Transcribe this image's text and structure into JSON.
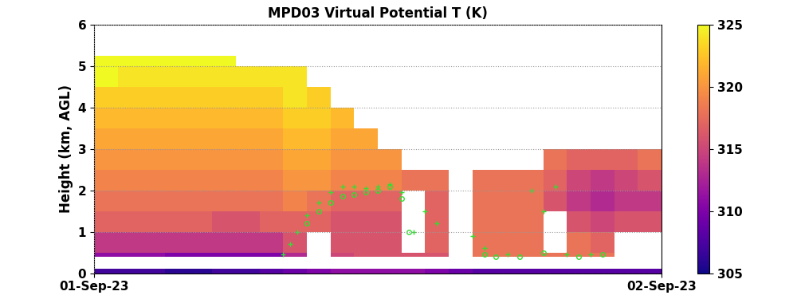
{
  "chart_data": {
    "type": "heatmap",
    "title": "MPD03 Virtual Potential T (K)",
    "y_label": "Height (km, AGL)",
    "xlim": [
      0,
      24
    ],
    "xticks": [
      {
        "value": 0,
        "label": "01-Sep-23"
      },
      {
        "value": 24,
        "label": "02-Sep-23"
      }
    ],
    "ylim": [
      0,
      6
    ],
    "yticks": [
      0,
      1,
      2,
      3,
      4,
      5,
      6
    ],
    "grid": true,
    "x": [
      0,
      1,
      2,
      3,
      4,
      5,
      6,
      7,
      8,
      9,
      10,
      11,
      12,
      13,
      14,
      15,
      16,
      17,
      18,
      19,
      20,
      21,
      22,
      23,
      24
    ],
    "y": [
      0,
      0.1,
      0.4,
      0.5,
      1.0,
      1.5,
      2.0,
      2.5,
      3.0,
      3.5,
      4.0,
      4.5,
      5.0,
      5.25
    ],
    "values": [
      [
        307,
        307,
        307,
        306,
        306,
        307,
        307,
        308,
        309,
        310,
        311,
        311,
        311,
        311,
        310,
        309,
        308,
        308,
        308,
        308,
        308,
        308,
        308,
        308
      ],
      [
        null,
        null,
        null,
        null,
        null,
        null,
        null,
        null,
        null,
        null,
        null,
        null,
        null,
        null,
        null,
        null,
        null,
        null,
        null,
        null,
        null,
        null,
        null,
        null
      ],
      [
        311,
        311,
        311,
        310,
        310,
        310,
        310,
        310,
        313,
        null,
        315,
        316,
        316,
        316,
        316,
        null,
        318,
        318,
        318,
        318,
        318,
        318,
        null,
        null
      ],
      [
        314,
        314,
        314,
        314,
        314,
        314,
        314,
        314,
        316,
        null,
        316,
        316,
        316,
        null,
        317,
        null,
        318,
        318,
        318,
        null,
        318,
        317,
        null,
        null
      ],
      [
        317,
        317,
        317,
        317,
        317,
        316,
        316,
        317,
        317,
        317,
        316,
        316,
        316,
        null,
        317,
        null,
        318,
        318,
        318,
        null,
        316,
        315,
        316,
        316
      ],
      [
        318,
        318,
        318,
        318,
        318,
        318,
        318,
        318,
        319,
        318,
        317,
        317,
        317,
        null,
        317,
        null,
        318,
        318,
        318,
        316,
        314,
        313,
        314,
        314
      ],
      [
        319,
        319,
        319,
        319,
        319,
        319,
        319,
        319,
        320,
        320,
        319,
        319,
        319,
        318,
        318,
        null,
        318,
        318,
        318,
        317,
        315,
        314,
        315,
        316
      ],
      [
        320,
        320,
        320,
        320,
        320,
        320,
        320,
        320,
        321,
        321,
        320,
        320,
        320,
        null,
        null,
        null,
        null,
        null,
        null,
        318,
        317,
        317,
        317,
        318
      ],
      [
        321,
        321,
        321,
        321,
        321,
        321,
        321,
        321,
        322,
        322,
        321,
        321,
        null,
        null,
        null,
        null,
        null,
        null,
        null,
        null,
        null,
        null,
        null,
        null
      ],
      [
        322,
        322,
        322,
        322,
        322,
        322,
        322,
        322,
        323,
        323,
        322,
        null,
        null,
        null,
        null,
        null,
        null,
        null,
        null,
        null,
        null,
        null,
        null,
        null
      ],
      [
        323,
        323,
        323,
        323,
        323,
        323,
        323,
        323,
        324,
        323,
        null,
        null,
        null,
        null,
        null,
        null,
        null,
        null,
        null,
        null,
        null,
        null,
        null,
        null
      ],
      [
        325,
        324,
        324,
        324,
        324,
        324,
        324,
        324,
        324,
        null,
        null,
        null,
        null,
        null,
        null,
        null,
        null,
        null,
        null,
        null,
        null,
        null,
        null,
        null
      ],
      [
        325,
        325,
        325,
        325,
        325,
        325,
        null,
        null,
        null,
        null,
        null,
        null,
        null,
        null,
        null,
        null,
        null,
        null,
        null,
        null,
        null,
        null,
        null,
        null
      ]
    ],
    "colorbar": {
      "range": [
        305,
        325
      ],
      "ticks": [
        305,
        310,
        315,
        320,
        325
      ]
    },
    "markers": [
      {
        "marker": "+",
        "color": "#33dd33",
        "x": [
          8.0,
          8.3,
          8.6,
          9.0,
          9.5,
          10.0,
          10.5,
          11.0,
          11.5,
          12.0,
          12.5,
          13.0,
          13.5,
          14.0,
          14.5,
          16.0,
          16.5,
          17.5,
          18.5,
          19.0,
          19.5,
          20.0,
          21.0
        ],
        "y": [
          0.45,
          0.7,
          1.0,
          1.4,
          1.7,
          1.95,
          2.1,
          2.1,
          2.05,
          2.1,
          2.15,
          1.95,
          1.0,
          1.5,
          1.2,
          0.9,
          0.6,
          0.45,
          2.0,
          1.5,
          2.1,
          0.45,
          0.45
        ]
      },
      {
        "marker": "o",
        "color": "#33dd33",
        "x": [
          9.0,
          9.5,
          10.0,
          10.5,
          11.0,
          11.5,
          12.0,
          12.5,
          13.0,
          13.3,
          16.5,
          17.0,
          18.0,
          19.0,
          20.5,
          21.5
        ],
        "y": [
          1.2,
          1.5,
          1.7,
          1.85,
          1.9,
          1.95,
          2.0,
          2.1,
          1.8,
          1.0,
          0.45,
          0.4,
          0.4,
          0.5,
          0.4,
          0.45
        ]
      }
    ]
  }
}
